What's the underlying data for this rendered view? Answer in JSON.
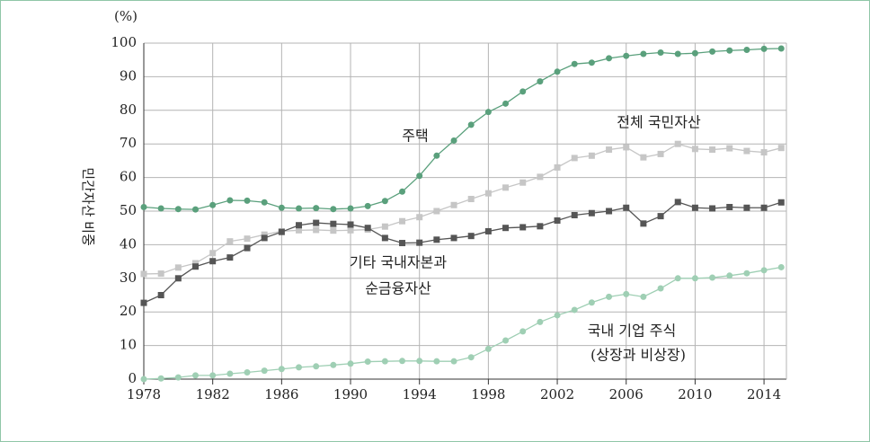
{
  "chart_data": {
    "type": "line",
    "y_axis_label": "민간자산 비중",
    "y_unit": "(%)",
    "x": [
      1978,
      1979,
      1980,
      1981,
      1982,
      1983,
      1984,
      1985,
      1986,
      1987,
      1988,
      1989,
      1990,
      1991,
      1992,
      1993,
      1994,
      1995,
      1996,
      1997,
      1998,
      1999,
      2000,
      2001,
      2002,
      2003,
      2004,
      2005,
      2006,
      2007,
      2008,
      2009,
      2010,
      2011,
      2012,
      2013,
      2014,
      2015
    ],
    "xlim": [
      1978,
      2015.3
    ],
    "xticks": [
      1978,
      1982,
      1986,
      1990,
      1994,
      1998,
      2002,
      2006,
      2010,
      2014
    ],
    "ylim": [
      0,
      100
    ],
    "yticks": [
      0,
      10,
      20,
      30,
      40,
      50,
      60,
      70,
      80,
      90,
      100
    ],
    "grid": true,
    "annotations": [
      "주택",
      "전체 국민자산",
      "기타 국내자본과",
      "순금융자산",
      "국내 기업 주식",
      "(상장과 비상장)"
    ],
    "series": [
      {
        "name": "주택",
        "color": "#5aa07c",
        "marker": "circle",
        "values": [
          51.2,
          50.8,
          50.6,
          50.5,
          51.8,
          53.2,
          53.1,
          52.6,
          51,
          50.8,
          50.9,
          50.6,
          50.8,
          51.5,
          53,
          55.8,
          60.5,
          66.5,
          71,
          75.7,
          79.5,
          82,
          85.6,
          88.6,
          91.5,
          93.8,
          94.2,
          95.5,
          96.2,
          96.8,
          97.2,
          96.8,
          97,
          97.5,
          97.8,
          98,
          98.3,
          98.4
        ]
      },
      {
        "name": "전체 국민자산",
        "color": "#c6c6c6",
        "marker": "square",
        "values": [
          31.3,
          31.4,
          33.2,
          34.5,
          37.5,
          41,
          41.8,
          43,
          44,
          44.3,
          44.4,
          44.2,
          44.3,
          44.5,
          45.4,
          47,
          48.2,
          50,
          51.8,
          53.6,
          55.3,
          57,
          58.5,
          60.2,
          63,
          65.8,
          66.5,
          68.3,
          69,
          66,
          67,
          70,
          68.5,
          68.3,
          68.7,
          67.9,
          67.5,
          68.8
        ]
      },
      {
        "name": "기타 국내자본과 순금융자산",
        "color": "#555555",
        "marker": "square",
        "values": [
          22.7,
          25,
          30,
          33.5,
          35.1,
          36.2,
          39,
          42,
          43.8,
          45.8,
          46.5,
          46.2,
          46,
          45,
          42,
          40.5,
          40.6,
          41.5,
          42,
          42.6,
          44,
          45,
          45.2,
          45.5,
          47.2,
          48.8,
          49.4,
          50,
          51,
          46.3,
          48.5,
          52.7,
          51,
          50.8,
          51.2,
          51,
          51,
          52.6
        ]
      },
      {
        "name": "국내 기업 주식 (상장과 비상장)",
        "color": "#9fcfb4",
        "marker": "circle",
        "values": [
          0,
          0.2,
          0.5,
          1.1,
          1.1,
          1.6,
          2,
          2.5,
          3,
          3.5,
          3.8,
          4.2,
          4.6,
          5.2,
          5.3,
          5.4,
          5.4,
          5.3,
          5.3,
          6.5,
          9,
          11.5,
          14.2,
          17,
          19,
          20.6,
          22.8,
          24.5,
          25.3,
          24.5,
          27,
          30,
          30,
          30.2,
          30.8,
          31.5,
          32.4,
          33.3
        ]
      }
    ]
  }
}
